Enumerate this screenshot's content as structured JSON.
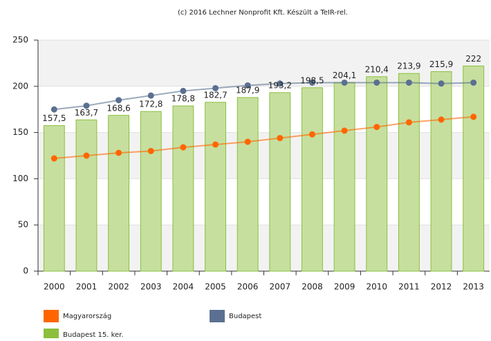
{
  "chart_data": {
    "type": "bar",
    "title": "(c) 2016 Lechner Nonprofit Kft. Készült a TeIR-rel.",
    "categories": [
      "2000",
      "2001",
      "2002",
      "2003",
      "2004",
      "2005",
      "2006",
      "2007",
      "2008",
      "2009",
      "2010",
      "2011",
      "2012",
      "2013"
    ],
    "series": [
      {
        "name": "Magyarország",
        "type": "line",
        "color": "#ff6600",
        "values": [
          122,
          125,
          128,
          130,
          134,
          137,
          140,
          144,
          148,
          152,
          156,
          161,
          164,
          167
        ]
      },
      {
        "name": "Budapest",
        "type": "line",
        "color": "#5a7090",
        "values": [
          175,
          179,
          185,
          190,
          195,
          198,
          201,
          203,
          204,
          204,
          204,
          204,
          203,
          204
        ]
      },
      {
        "name": "Budapest 15. ker.",
        "type": "bar",
        "color": "#8bbf3c",
        "values": [
          157.5,
          163.7,
          168.6,
          172.8,
          178.8,
          182.7,
          187.9,
          193.2,
          198.5,
          204.1,
          210.4,
          213.9,
          215.9,
          222
        ],
        "value_labels": [
          "157,5",
          "163,7",
          "168,6",
          "172,8",
          "178,8",
          "182,7",
          "187,9",
          "193,2",
          "198,5",
          "204,1",
          "210,4",
          "213,9",
          "215,9",
          "222"
        ]
      }
    ],
    "ylim": [
      0,
      250
    ],
    "yticks": [
      0,
      50,
      100,
      150,
      200,
      250
    ],
    "grid": true,
    "legend": "bottom"
  }
}
